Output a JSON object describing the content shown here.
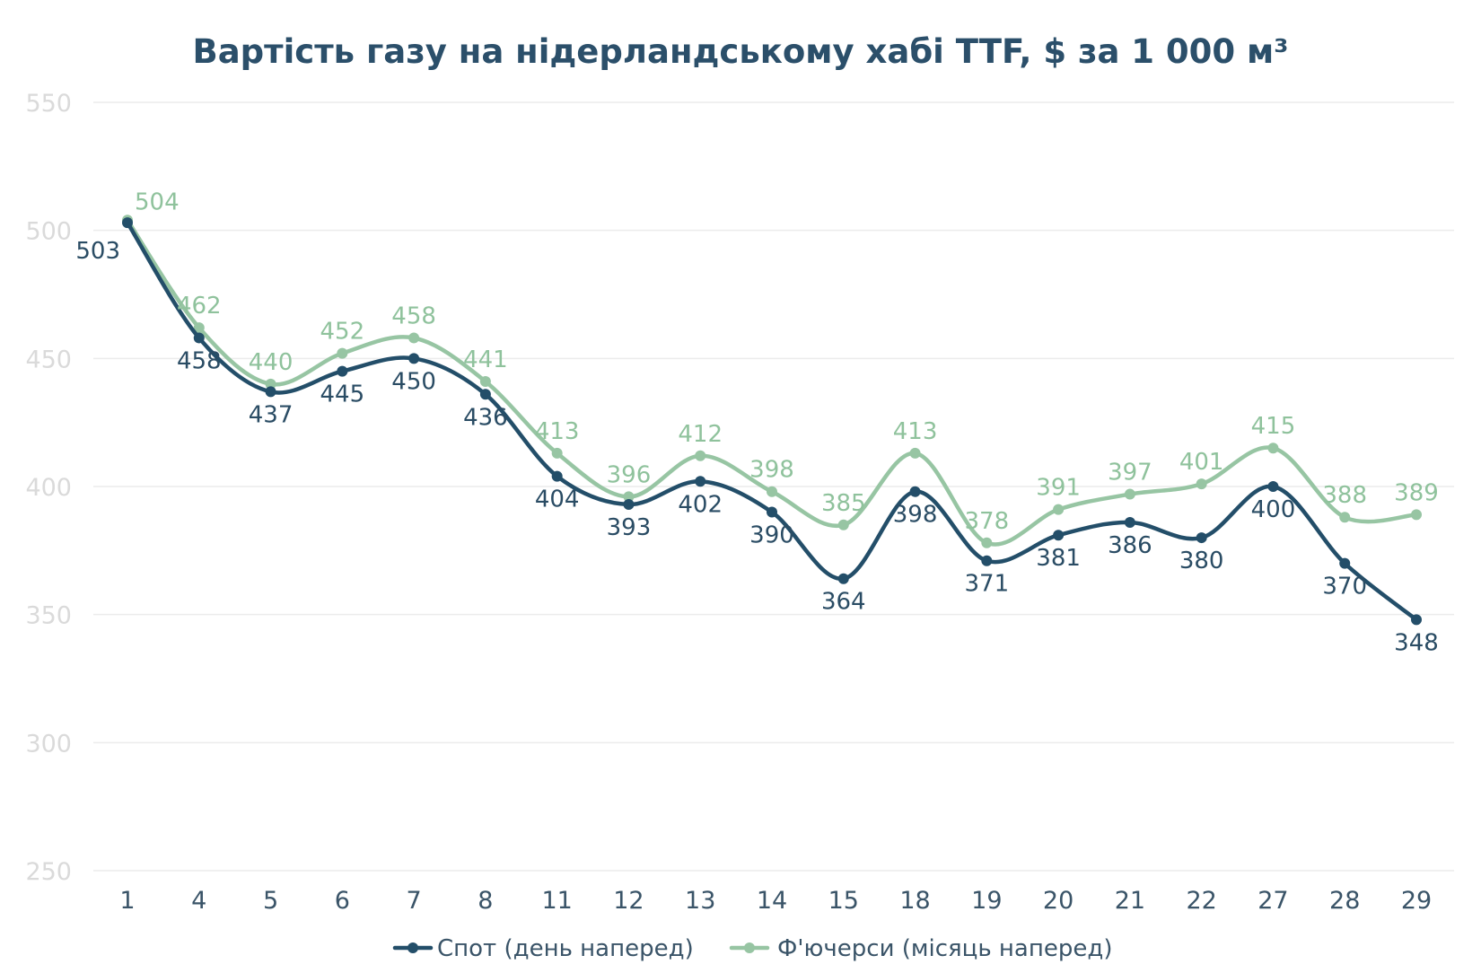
{
  "chart_data": {
    "type": "line",
    "title": "Вартість газу на нідерландському хабі TTF, $ за 1 000 м³",
    "xlabel": "",
    "ylabel": "",
    "categories": [
      "1",
      "4",
      "5",
      "6",
      "7",
      "8",
      "11",
      "12",
      "13",
      "14",
      "15",
      "18",
      "19",
      "20",
      "21",
      "22",
      "27",
      "28",
      "29"
    ],
    "ylim": [
      250,
      550
    ],
    "yticks": [
      250,
      300,
      350,
      400,
      450,
      500,
      550
    ],
    "grid": true,
    "legend_position": "bottom",
    "series": [
      {
        "name": "Спот (день наперед)",
        "color": "#234e69",
        "label_position": "below",
        "values": [
          503,
          458,
          437,
          445,
          450,
          436,
          404,
          393,
          402,
          390,
          364,
          398,
          371,
          381,
          386,
          380,
          400,
          370,
          348
        ]
      },
      {
        "name": "Ф'ючерси (місяць наперед)",
        "color": "#97c5a3",
        "label_position": "above",
        "values": [
          504,
          462,
          440,
          452,
          458,
          441,
          413,
          396,
          412,
          398,
          385,
          413,
          378,
          391,
          397,
          401,
          415,
          388,
          389
        ]
      }
    ]
  }
}
